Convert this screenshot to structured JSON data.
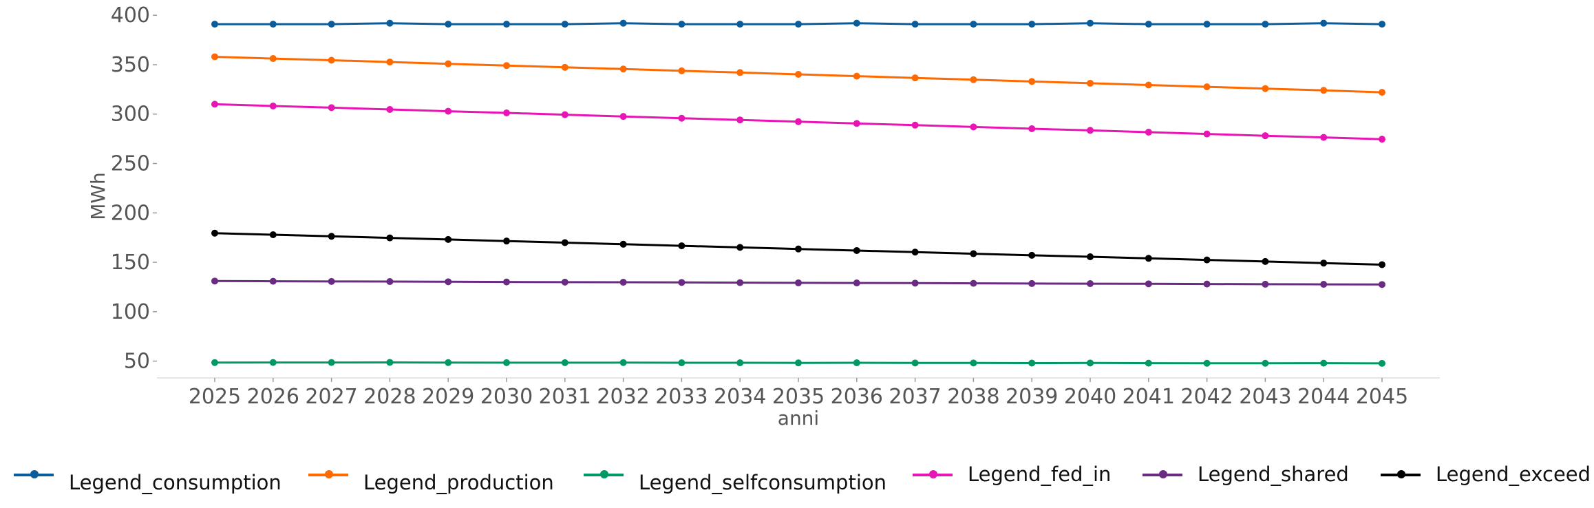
{
  "chart_data": {
    "type": "line",
    "title": "",
    "xlabel": "anni",
    "ylabel": "MWh",
    "x": [
      "2025",
      "2026",
      "2027",
      "2028",
      "2029",
      "2030",
      "2031",
      "2032",
      "2033",
      "2034",
      "2035",
      "2036",
      "2037",
      "2038",
      "2039",
      "2040",
      "2041",
      "2042",
      "2043",
      "2044",
      "2045"
    ],
    "yticks": [
      50,
      100,
      150,
      200,
      250,
      300,
      350,
      400
    ],
    "ylim": [
      33,
      405
    ],
    "grid": false,
    "legend_position": "bottom",
    "series": [
      {
        "name": "Legend_consumption",
        "color": "#0a5d9c",
        "values": [
          391,
          391,
          391,
          392,
          391,
          391,
          391,
          392,
          391,
          391,
          391,
          392,
          391,
          391,
          391,
          392,
          391,
          391,
          391,
          392,
          391
        ]
      },
      {
        "name": "Legend_production",
        "color": "#ff6a00",
        "values": [
          358,
          356.2,
          354.5,
          352.7,
          350.9,
          349.1,
          347.3,
          345.6,
          343.8,
          342,
          340.2,
          338.4,
          336.6,
          334.8,
          333,
          331.2,
          329.4,
          327.6,
          325.8,
          324,
          322
        ]
      },
      {
        "name": "Legend_selfconsumption",
        "color": "#009966",
        "values": [
          48.5,
          48.6,
          48.6,
          48.7,
          48.5,
          48.4,
          48.4,
          48.5,
          48.3,
          48.3,
          48.2,
          48.3,
          48.1,
          48.1,
          48,
          48.1,
          47.9,
          47.8,
          47.8,
          47.9,
          47.7
        ]
      },
      {
        "name": "Legend_fed_in",
        "color": "#e814b4",
        "values": [
          310,
          308.2,
          306.5,
          304.7,
          302.9,
          301.2,
          299.4,
          297.6,
          295.8,
          294.1,
          292.3,
          290.5,
          288.8,
          287,
          285.2,
          283.5,
          281.7,
          279.9,
          278.1,
          276.4,
          274.6
        ]
      },
      {
        "name": "Legend_shared",
        "color": "#6a2c82",
        "values": [
          131,
          130.8,
          130.6,
          130.5,
          130.3,
          130.1,
          129.9,
          129.8,
          129.6,
          129.4,
          129.2,
          129.1,
          128.9,
          128.7,
          128.5,
          128.4,
          128.2,
          128,
          127.8,
          127.7,
          127.5
        ]
      },
      {
        "name": "Legend_exceed",
        "color": "#000000",
        "values": [
          179.5,
          177.9,
          176.3,
          174.7,
          173.1,
          171.5,
          169.9,
          168.3,
          166.7,
          165.1,
          163.5,
          161.9,
          160.3,
          158.7,
          157.1,
          155.6,
          154,
          152.4,
          150.8,
          149.2,
          147.6
        ]
      }
    ]
  }
}
